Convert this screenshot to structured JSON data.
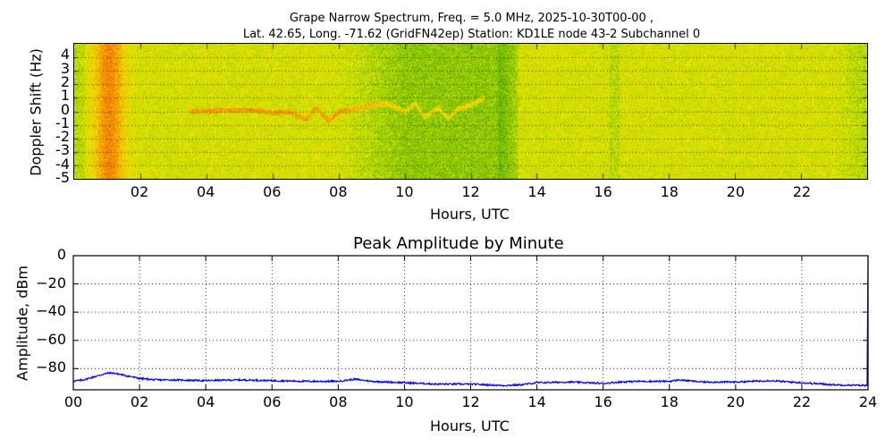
{
  "figure": {
    "title_line1": "Grape Narrow Spectrum, Freq. = 5.0 MHz, 2025-10-30T00-00 ,",
    "title_line2": "Lat.  42.65, Long. -71.62 (GridFN42ep) Station: KD1LE node 43-2 Subchannel 0"
  },
  "chart_data": [
    {
      "type": "heatmap",
      "title": "Grape Narrow Spectrum, Freq. = 5.0 MHz, 2025-10-30T00-00 , Lat.  42.65, Long. -71.62 (GridFN42ep) Station: KD1LE node 43-2 Subchannel 0",
      "xlabel": "Hours, UTC",
      "ylabel": "Doppler Shift (Hz)",
      "xlim": [
        0,
        24
      ],
      "ylim": [
        -5,
        5
      ],
      "xticks": [
        "02",
        "04",
        "06",
        "08",
        "10",
        "12",
        "14",
        "16",
        "18",
        "20",
        "22"
      ],
      "yticks": [
        "4",
        "3",
        "2",
        "1",
        "0",
        "-1",
        "-2",
        "-3",
        "-4",
        "-5"
      ],
      "grid": true,
      "colormap": [
        "#3c9a00",
        "#7fc000",
        "#d8e400",
        "#f2e000",
        "#f5a000",
        "#f07000"
      ],
      "notes": "Broadband orange/red band near 00:30-01:30 UTC; yellow-green noise 00-08; greener (lower power) 08-13.5 UTC; Doppler carrier trace near 0 Hz visible ~03:30-12:30 UTC",
      "doppler_trace": {
        "hours": [
          3.5,
          4.5,
          5.5,
          6.0,
          6.5,
          7.0,
          7.3,
          7.7,
          8.0,
          8.5,
          9.0,
          9.5,
          10.0,
          10.3,
          10.6,
          11.0,
          11.3,
          11.6,
          12.0,
          12.4
        ],
        "hz": [
          0.0,
          0.1,
          0.1,
          -0.1,
          0.0,
          -0.6,
          0.3,
          -0.7,
          0.0,
          0.2,
          0.5,
          0.6,
          0.0,
          0.6,
          -0.4,
          0.3,
          -0.5,
          0.2,
          0.5,
          1.0
        ]
      }
    },
    {
      "type": "line",
      "title": "Peak Amplitude by Minute",
      "xlabel": "Hours, UTC",
      "ylabel": "Amplitude, dBm",
      "xlim": [
        0,
        24
      ],
      "ylim": [
        -95,
        0
      ],
      "xticks": [
        "00",
        "02",
        "04",
        "06",
        "08",
        "10",
        "12",
        "14",
        "16",
        "18",
        "20",
        "22",
        "24"
      ],
      "yticks": [
        "0",
        "−20",
        "−40",
        "−60",
        "−80"
      ],
      "grid": true,
      "series": [
        {
          "name": "Peak Amplitude",
          "color": "#0000ff",
          "x": [
            0,
            0.3,
            0.6,
            0.9,
            1.1,
            1.3,
            1.6,
            2.0,
            2.5,
            3.0,
            4.0,
            5.0,
            6.0,
            7.0,
            8.0,
            8.5,
            9.0,
            10.0,
            11.0,
            12.0,
            13.0,
            13.5,
            14.0,
            15.0,
            16.0,
            16.5,
            17.0,
            18.0,
            18.3,
            19.0,
            20.0,
            21.0,
            22.0,
            23.0,
            23.97,
            24.0
          ],
          "y": [
            -89,
            -88,
            -86,
            -84,
            -83,
            -83.5,
            -85,
            -87,
            -88,
            -88,
            -88.5,
            -88,
            -88.5,
            -89,
            -89,
            -87.5,
            -89,
            -90,
            -91,
            -91,
            -92,
            -91.5,
            -90,
            -89.5,
            -90.5,
            -89.5,
            -89,
            -89,
            -88,
            -89.5,
            -89.5,
            -88.5,
            -90,
            -91.5,
            -92,
            0
          ]
        }
      ]
    }
  ],
  "spectrogram": {
    "xlabel": "Hours, UTC",
    "ylabel": "Doppler Shift (Hz)",
    "xticks": [
      "02",
      "04",
      "06",
      "08",
      "10",
      "12",
      "14",
      "16",
      "18",
      "20",
      "22"
    ],
    "yticks": [
      "4",
      "3",
      "2",
      "1",
      "0",
      "-1",
      "-2",
      "-3",
      "-4",
      "-5"
    ]
  },
  "amplitude": {
    "title": "Peak Amplitude by Minute",
    "xlabel": "Hours, UTC",
    "ylabel": "Amplitude, dBm",
    "xticks": [
      "00",
      "02",
      "04",
      "06",
      "08",
      "10",
      "12",
      "14",
      "16",
      "18",
      "20",
      "22",
      "24"
    ],
    "yticks": [
      "0",
      "−20",
      "−40",
      "−60",
      "−80"
    ]
  }
}
